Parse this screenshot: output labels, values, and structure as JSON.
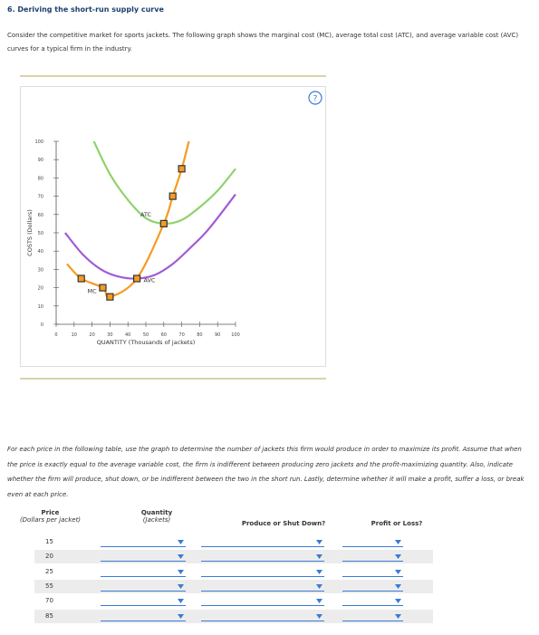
{
  "header": {
    "title": "6. Deriving the short-run supply curve"
  },
  "intro": "Consider the competitive market for sports jackets. The following graph shows the marginal cost (MC), average total cost (ATC), and average variable cost (AVC) curves for a typical firm in the industry.",
  "help": "?",
  "chart_data": {
    "type": "line",
    "x_label": "QUANTITY (Thousands of jackets)",
    "y_label": "COSTS (Dollars)",
    "xlim": [
      0,
      100
    ],
    "ylim": [
      0,
      100
    ],
    "xticks": [
      0,
      10,
      20,
      30,
      40,
      50,
      60,
      70,
      80,
      90,
      100
    ],
    "yticks": [
      0,
      10,
      20,
      30,
      40,
      50,
      60,
      70,
      80,
      90,
      100
    ],
    "series": [
      {
        "name": "MC",
        "color": "#f59b23",
        "x": [
          6,
          14,
          26,
          30,
          45,
          60,
          65,
          70,
          74
        ],
        "values": [
          33,
          25,
          20,
          15,
          25,
          55,
          70,
          85,
          100
        ]
      },
      {
        "name": "ATC",
        "color": "#8ed36b",
        "x": [
          21,
          30,
          40,
          50,
          60,
          70,
          80,
          90,
          100
        ],
        "values": [
          100,
          82,
          68,
          58,
          55,
          57,
          64,
          73,
          85
        ]
      },
      {
        "name": "AVC",
        "color": "#a05bd6",
        "x": [
          5,
          15,
          25,
          35,
          45,
          55,
          65,
          75,
          85,
          100
        ],
        "values": [
          50,
          38,
          30,
          26,
          25,
          27,
          33,
          42,
          52,
          71
        ]
      }
    ],
    "markers": {
      "color": "#f59b23",
      "x": [
        14,
        26,
        30,
        45,
        60,
        65,
        70
      ],
      "values": [
        25,
        20,
        15,
        25,
        55,
        70,
        85
      ]
    }
  },
  "instructions": "For each price in the following table, use the graph to determine the number of jackets this firm would produce in order to maximize its profit. Assume that when the price is exactly equal to the average variable cost, the firm is indifferent between producing zero jackets and the profit-maximizing quantity. Also, indicate whether the firm will produce, shut down, or be indifferent between the two in the short run. Lastly, determine whether it will make a profit, suffer a loss, or break even at each price.",
  "table": {
    "headers": [
      {
        "title": "Price",
        "sub": "(Dollars per jacket)"
      },
      {
        "title": "Quantity",
        "sub": "(Jackets)"
      },
      {
        "title": "Produce or Shut Down?"
      },
      {
        "title": "Profit or Loss?"
      }
    ],
    "rows": [
      15,
      20,
      25,
      55,
      70,
      85
    ]
  }
}
